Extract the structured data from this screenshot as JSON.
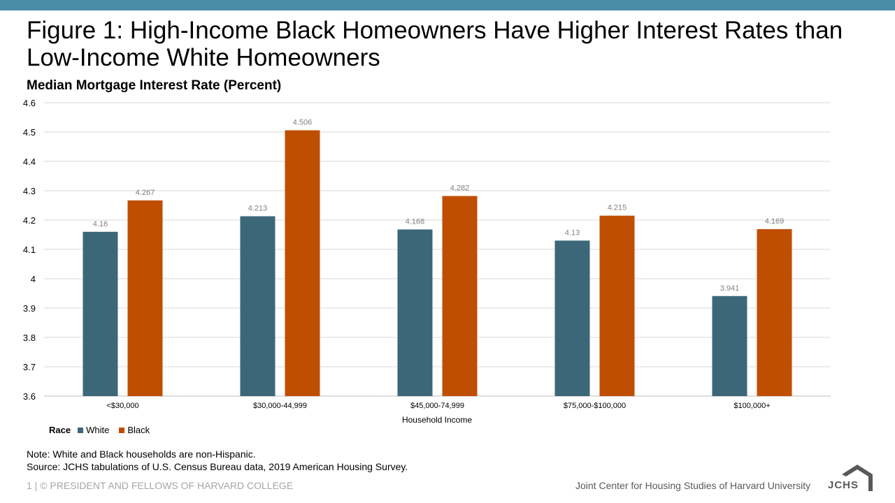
{
  "header": {
    "title": "Figure 1: High-Income Black Homeowners Have Higher Interest Rates than Low-Income White Homeowners",
    "subtitle": "Median Mortgage Interest Rate (Percent)"
  },
  "colors": {
    "accent_bar": "#4a8ba6",
    "white_series": "#3b6779",
    "black_series": "#c04e00"
  },
  "chart_data": {
    "type": "bar",
    "title": "",
    "xlabel": "Household Income",
    "ylabel": "Median Mortgage Interest Rate (Percent)",
    "ylim": [
      3.6,
      4.6
    ],
    "yticks": [
      "3.6",
      "3.7",
      "3.8",
      "3.9",
      "4",
      "4.1",
      "4.2",
      "4.3",
      "4.4",
      "4.5",
      "4.6"
    ],
    "grid": true,
    "legend_placement": "bottom-left",
    "legend_title": "Race",
    "categories": [
      "<$30,000",
      "$30,000-44,999",
      "$45,000-74,999",
      "$75,000-$100,000",
      "$100,000+"
    ],
    "series": [
      {
        "name": "White",
        "color": "#3b6779",
        "values": [
          4.16,
          4.213,
          4.168,
          4.13,
          3.941
        ],
        "labels": [
          "4.16",
          "4.213",
          "4.168",
          "4.13",
          "3.941"
        ]
      },
      {
        "name": "Black",
        "color": "#c04e00",
        "values": [
          4.267,
          4.506,
          4.282,
          4.215,
          4.169
        ],
        "labels": [
          "4.267",
          "4.506",
          "4.282",
          "4.215",
          "4.169"
        ]
      }
    ]
  },
  "notes": {
    "note": "Note: White and Black households are non-Hispanic.",
    "source": "Source: JCHS tabulations of U.S. Census Bureau data, 2019 American Housing Survey."
  },
  "footer": {
    "left": "1 | © PRESIDENT AND FELLOWS OF HARVARD COLLEGE",
    "right": "Joint Center for Housing Studies of Harvard University",
    "logo_text": "JCHS"
  }
}
